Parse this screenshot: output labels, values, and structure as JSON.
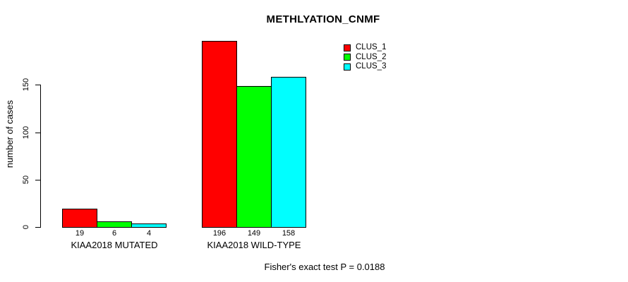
{
  "chart_data": {
    "type": "bar",
    "title": "METHLYATION_CNMF",
    "ylabel": "number of cases",
    "xlabel": "",
    "categories": [
      "KIAA2018 MUTATED",
      "KIAA2018 WILD-TYPE"
    ],
    "series": [
      {
        "name": "CLUS_1",
        "color": "#ff0000",
        "values": [
          19,
          196
        ]
      },
      {
        "name": "CLUS_2",
        "color": "#00ff00",
        "values": [
          6,
          149
        ]
      },
      {
        "name": "CLUS_3",
        "color": "#00ffff",
        "values": [
          4,
          158
        ]
      }
    ],
    "yticks": [
      0,
      50,
      100,
      150
    ],
    "ylim": [
      0,
      196
    ],
    "grid": false,
    "bar_labels_shown": true,
    "legend_position": "top-right",
    "annotation": "Fisher's exact test P = 0.0188"
  },
  "colors": {
    "background": "#ffffff",
    "axis": "#000000",
    "text": "#000000",
    "bar_border": "#000000"
  }
}
